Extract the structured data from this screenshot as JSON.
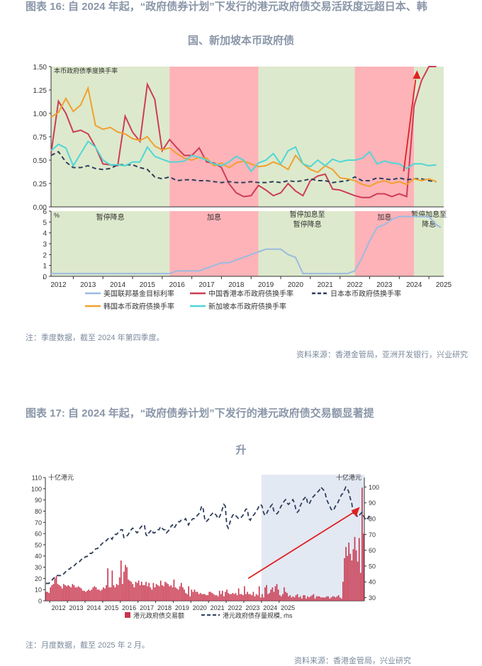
{
  "figure16": {
    "title_line1": "图表 16: 自 2024 年起，“政府债券计划”下发行的港元政府债交易活跃度远超日本、韩",
    "title_line2": "国、新加坡本币政府债",
    "note": "注：季度数据，截至 2024 年第四季度。",
    "source": "资料来源：香港金管局，亚洲开发银行，兴业研究"
  },
  "figure17": {
    "title_line1": "图表 17: 自 2024 年起，“政府债券计划”下发行的港元政府债交易额显著提",
    "title_line2": "升",
    "note": "注：月度数据，截至 2025 年 2 月。",
    "source": "资料来源：香港金管局，兴业研究"
  },
  "chart_data": [
    {
      "type": "line",
      "panel": "top",
      "title": "本币政府债季度换手率",
      "x": [
        2011.75,
        2012.0,
        2012.25,
        2012.5,
        2012.75,
        2013.0,
        2013.25,
        2013.5,
        2013.75,
        2014.0,
        2014.25,
        2014.5,
        2014.75,
        2015.0,
        2015.25,
        2015.5,
        2015.75,
        2016.0,
        2016.25,
        2016.5,
        2016.75,
        2017.0,
        2017.25,
        2017.5,
        2017.75,
        2018.0,
        2018.25,
        2018.5,
        2018.75,
        2019.0,
        2019.25,
        2019.5,
        2019.75,
        2020.0,
        2020.25,
        2020.5,
        2020.75,
        2021.0,
        2021.25,
        2021.5,
        2021.75,
        2022.0,
        2022.25,
        2022.5,
        2022.75,
        2023.0,
        2023.25,
        2023.5,
        2023.75,
        2024.0,
        2024.25,
        2024.5,
        2024.75
      ],
      "ylim": [
        0,
        1.5
      ],
      "yticks": [
        "0.00",
        "0.25",
        "0.50",
        "0.75",
        "1.00",
        "1.25",
        "1.50"
      ],
      "series": [
        {
          "name": "中国香港本币政府债换手率",
          "color": "#cc3d55",
          "values": [
            0.57,
            1.13,
            1.0,
            0.8,
            0.82,
            0.78,
            0.64,
            0.46,
            0.45,
            0.44,
            0.97,
            0.8,
            0.7,
            1.31,
            1.15,
            0.6,
            0.72,
            0.63,
            0.55,
            0.55,
            0.63,
            0.48,
            0.47,
            0.42,
            0.25,
            0.15,
            0.11,
            0.12,
            0.23,
            0.18,
            0.12,
            0.15,
            0.25,
            0.17,
            0.12,
            0.28,
            0.33,
            0.35,
            0.19,
            0.18,
            0.15,
            0.12,
            0.1,
            0.1,
            0.14,
            0.14,
            0.11,
            0.14,
            0.11,
            1.08,
            1.35,
            1.5,
            1.5
          ]
        },
        {
          "name": "日本本币政府债换手率",
          "color": "#2e3e5c",
          "dashed": true,
          "values": [
            0.55,
            0.59,
            0.48,
            0.42,
            0.42,
            0.44,
            0.41,
            0.4,
            0.41,
            0.45,
            0.45,
            0.45,
            0.42,
            0.4,
            0.32,
            0.3,
            0.32,
            0.28,
            0.29,
            0.29,
            0.28,
            0.28,
            0.27,
            0.26,
            0.27,
            0.26,
            0.26,
            0.27,
            0.26,
            0.26,
            0.27,
            0.26,
            0.28,
            0.27,
            0.28,
            0.3,
            0.28,
            0.28,
            0.26,
            0.27,
            0.28,
            0.32,
            0.28,
            0.28,
            0.31,
            0.3,
            0.29,
            0.31,
            0.29,
            0.3,
            0.3,
            0.28,
            0.27
          ]
        },
        {
          "name": "韩国本币政府债换手率",
          "color": "#f0a12e",
          "values": [
            0.96,
            1.01,
            1.16,
            1.02,
            1.09,
            1.27,
            0.87,
            0.83,
            0.85,
            0.8,
            0.78,
            0.73,
            0.71,
            0.75,
            0.65,
            0.61,
            0.63,
            0.57,
            0.52,
            0.5,
            0.53,
            0.52,
            0.44,
            0.47,
            0.42,
            0.47,
            0.49,
            0.46,
            0.43,
            0.44,
            0.48,
            0.45,
            0.4,
            0.55,
            0.46,
            0.4,
            0.37,
            0.44,
            0.4,
            0.31,
            0.3,
            0.28,
            0.24,
            0.22,
            0.26,
            0.28,
            0.25,
            0.27,
            0.24,
            0.3,
            0.28,
            0.3,
            0.27
          ]
        },
        {
          "name": "新加坡本币政府债换手率",
          "color": "#4fd6d6",
          "values": [
            0.6,
            0.67,
            0.63,
            0.44,
            0.57,
            0.7,
            0.64,
            0.5,
            0.45,
            0.45,
            0.44,
            0.48,
            0.48,
            0.64,
            0.54,
            0.51,
            0.48,
            0.48,
            0.49,
            0.55,
            0.53,
            0.5,
            0.46,
            0.44,
            0.48,
            0.54,
            0.5,
            0.38,
            0.47,
            0.5,
            0.57,
            0.46,
            0.6,
            0.64,
            0.46,
            0.43,
            0.5,
            0.44,
            0.51,
            0.48,
            0.5,
            0.5,
            0.52,
            0.59,
            0.46,
            0.49,
            0.47,
            0.46,
            0.41,
            0.46,
            0.46,
            0.44,
            0.45
          ]
        }
      ],
      "annotation": "red-arrow"
    },
    {
      "type": "line",
      "panel": "bottom",
      "ylabel": "%",
      "ylim": [
        0,
        6
      ],
      "yticks": [
        "0",
        "1",
        "2",
        "3",
        "4",
        "5",
        "6"
      ],
      "xticks": [
        "2012",
        "2013",
        "2014",
        "2015",
        "2016",
        "2017",
        "2018",
        "2019",
        "2020",
        "2021",
        "2022",
        "2023",
        "2024",
        "2025"
      ],
      "regions": [
        {
          "from": 2011.75,
          "to": 2015.75,
          "type": "pause",
          "label": "暂停降息",
          "color": "#dde9cc"
        },
        {
          "from": 2015.75,
          "to": 2018.75,
          "type": "hike",
          "label": "加息",
          "color": "#fdb3b8"
        },
        {
          "from": 2018.75,
          "to": 2022.0,
          "type": "pause",
          "label": "暂停加息至暂停降息",
          "color": "#dde9cc"
        },
        {
          "from": 2022.0,
          "to": 2024.0,
          "type": "hike",
          "label": "加息",
          "color": "#fdb3b8"
        },
        {
          "from": 2024.0,
          "to": 2025.0,
          "type": "pause",
          "label": "暂停加息至降息",
          "color": "#dde9cc"
        }
      ],
      "series": [
        {
          "name": "美国联邦基金目标利率",
          "color": "#9bbbe0",
          "points": [
            [
              2011.75,
              0.25
            ],
            [
              2015.75,
              0.25
            ],
            [
              2016.0,
              0.5
            ],
            [
              2016.75,
              0.5
            ],
            [
              2017.0,
              0.75
            ],
            [
              2017.25,
              1.0
            ],
            [
              2017.5,
              1.25
            ],
            [
              2017.75,
              1.25
            ],
            [
              2018.0,
              1.5
            ],
            [
              2018.25,
              1.75
            ],
            [
              2018.5,
              2.0
            ],
            [
              2018.75,
              2.25
            ],
            [
              2019.0,
              2.5
            ],
            [
              2019.5,
              2.5
            ],
            [
              2019.75,
              2.0
            ],
            [
              2020.0,
              1.75
            ],
            [
              2020.25,
              0.25
            ],
            [
              2021.75,
              0.25
            ],
            [
              2022.0,
              0.5
            ],
            [
              2022.25,
              1.75
            ],
            [
              2022.5,
              3.25
            ],
            [
              2022.75,
              4.5
            ],
            [
              2023.0,
              4.75
            ],
            [
              2023.25,
              5.25
            ],
            [
              2023.5,
              5.5
            ],
            [
              2024.5,
              5.5
            ],
            [
              2024.75,
              4.75
            ],
            [
              2024.9,
              4.5
            ]
          ]
        }
      ]
    },
    {
      "type": "bar",
      "title": "十亿港元",
      "rhs_title": "十亿港元",
      "ylim": [
        0,
        110
      ],
      "yticks": [
        "0",
        "10",
        "20",
        "30",
        "40",
        "50",
        "60",
        "70",
        "80",
        "90",
        "100",
        "110"
      ],
      "rhs_ylim": [
        28,
        106
      ],
      "rhs_yticks": [
        "30",
        "40",
        "50",
        "60",
        "70",
        "80",
        "90",
        "100"
      ],
      "xticks": [
        "2012",
        "2013",
        "2014",
        "2015",
        "2016",
        "2017",
        "2018",
        "2019",
        "2020",
        "2021",
        "2022",
        "2023",
        "2024",
        "2025"
      ],
      "highlight": {
        "from": "2024-01",
        "to": "2025-02"
      },
      "series": [
        {
          "name": "港元政府债交易额",
          "color": "#c8364e",
          "values": [
            8,
            8,
            7,
            12,
            14,
            15,
            20,
            22,
            15,
            14,
            13,
            11,
            15,
            14,
            13,
            14,
            13,
            12,
            15,
            14,
            12,
            12,
            13,
            12,
            11,
            9,
            9,
            8,
            9,
            10,
            9,
            10,
            12,
            13,
            12,
            10,
            10,
            9,
            10,
            12,
            11,
            14,
            29,
            12,
            12,
            27,
            14,
            12,
            15,
            14,
            21,
            36,
            15,
            26,
            32,
            30,
            19,
            18,
            17,
            15,
            12,
            17,
            16,
            18,
            14,
            17,
            14,
            14,
            17,
            13,
            16,
            12,
            10,
            16,
            12,
            15,
            14,
            13,
            18,
            14,
            13,
            17,
            16,
            15,
            13,
            14,
            12,
            19,
            12,
            11,
            10,
            13,
            16,
            12,
            10,
            7,
            6,
            13,
            4,
            10,
            8,
            10,
            8,
            8,
            6,
            7,
            6,
            6,
            6,
            5,
            5,
            8,
            8,
            7,
            6,
            5,
            5,
            4,
            9,
            6,
            9,
            4,
            8,
            10,
            7,
            6,
            6,
            7,
            6,
            7,
            5,
            11,
            6,
            6,
            5,
            13,
            6,
            8,
            6,
            6,
            5,
            8,
            4,
            6,
            5,
            13,
            3,
            6,
            3,
            12,
            14,
            6,
            7,
            10,
            12,
            8,
            13,
            15,
            10,
            5,
            4,
            6,
            12,
            8,
            7,
            4,
            5,
            3,
            4,
            3,
            5,
            6,
            3,
            4,
            2,
            5,
            5,
            2,
            4,
            3,
            4,
            5,
            6,
            2,
            4,
            4,
            4,
            3,
            3,
            3,
            3,
            4,
            4,
            2,
            3,
            4,
            4,
            3,
            4,
            5,
            3,
            2,
            17,
            38,
            48,
            40,
            52,
            42,
            36,
            46,
            57,
            45,
            35,
            56,
            25,
            101,
            60
          ]
        },
        {
          "name": "港元政府债存量规模, rhs",
          "color": "#2e3e5c",
          "dashed": true,
          "rhs": true,
          "values": [
            39,
            39,
            39,
            40,
            41,
            42,
            43,
            44,
            44,
            44,
            44,
            45,
            45,
            46,
            47,
            48,
            48,
            49,
            49,
            50,
            51,
            52,
            52,
            53,
            54,
            55,
            55,
            56,
            56,
            57,
            58,
            58,
            59,
            60,
            61,
            61,
            62,
            63,
            64,
            65,
            66,
            66,
            67,
            68,
            68,
            67,
            69,
            70,
            70,
            71,
            72,
            73,
            73,
            68,
            68,
            69,
            70,
            72,
            73,
            74,
            73,
            72,
            71,
            72,
            74,
            75,
            76,
            76,
            70,
            69,
            71,
            72,
            73,
            71,
            71,
            72,
            73,
            73,
            75,
            74,
            73,
            73,
            71,
            72,
            73,
            75,
            76,
            74,
            75,
            77,
            78,
            78,
            79,
            79,
            79,
            80,
            78,
            76,
            78,
            79,
            80,
            80,
            81,
            82,
            83,
            85,
            88,
            86,
            80,
            78,
            79,
            80,
            82,
            83,
            84,
            83,
            82,
            80,
            81,
            83,
            86,
            89,
            88,
            76,
            74,
            77,
            80,
            82,
            83,
            82,
            81,
            80,
            80,
            81,
            82,
            84,
            86,
            86,
            80,
            79,
            81,
            82,
            83,
            85,
            86,
            88,
            89,
            88,
            84,
            82,
            83,
            85,
            86,
            88,
            89,
            85,
            84,
            83,
            84,
            86,
            88,
            89,
            91,
            92,
            90,
            89,
            90,
            91,
            92,
            90,
            86,
            84,
            85,
            88,
            90,
            92,
            93,
            94,
            90,
            89,
            91,
            93,
            94,
            95,
            96,
            97,
            98,
            100,
            99,
            98,
            96,
            92,
            90,
            88,
            86,
            85,
            86,
            88,
            89,
            91,
            93,
            95,
            96,
            98,
            100,
            99,
            97,
            93,
            90,
            84,
            82,
            83,
            81,
            82,
            83,
            84,
            82,
            80,
            81,
            80,
            82
          ]
        }
      ],
      "annotation": "red-arrow"
    }
  ]
}
